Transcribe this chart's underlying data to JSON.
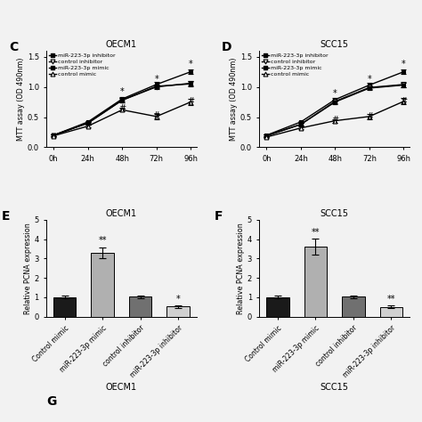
{
  "title_C": "OECM1",
  "title_D": "SCC15",
  "title_E": "OECM1",
  "title_F": "SCC15",
  "timepoints": [
    0,
    24,
    48,
    72,
    96
  ],
  "time_labels": [
    "0h",
    "24h",
    "48h",
    "72h",
    "96h"
  ],
  "C_inhibitor": [
    0.2,
    0.42,
    0.8,
    1.04,
    1.25
  ],
  "C_ctrl_inhibitor": [
    0.2,
    0.4,
    0.78,
    1.0,
    1.06
  ],
  "C_mimic": [
    0.2,
    0.4,
    0.78,
    1.01,
    1.05
  ],
  "C_ctrl_mimic": [
    0.19,
    0.35,
    0.62,
    0.51,
    0.75
  ],
  "C_inhibitor_err": [
    0.02,
    0.02,
    0.03,
    0.04,
    0.04
  ],
  "C_ctrl_inhibitor_err": [
    0.02,
    0.02,
    0.03,
    0.03,
    0.04
  ],
  "C_mimic_err": [
    0.02,
    0.02,
    0.03,
    0.03,
    0.04
  ],
  "C_ctrl_mimic_err": [
    0.02,
    0.02,
    0.03,
    0.04,
    0.05
  ],
  "D_inhibitor": [
    0.2,
    0.42,
    0.79,
    1.03,
    1.25
  ],
  "D_ctrl_inhibitor": [
    0.19,
    0.38,
    0.76,
    0.99,
    1.04
  ],
  "D_mimic": [
    0.19,
    0.38,
    0.75,
    0.98,
    1.03
  ],
  "D_ctrl_mimic": [
    0.17,
    0.32,
    0.44,
    0.51,
    0.76
  ],
  "D_inhibitor_err": [
    0.02,
    0.02,
    0.03,
    0.04,
    0.04
  ],
  "D_ctrl_inhibitor_err": [
    0.02,
    0.02,
    0.03,
    0.03,
    0.04
  ],
  "D_mimic_err": [
    0.02,
    0.02,
    0.03,
    0.03,
    0.04
  ],
  "D_ctrl_mimic_err": [
    0.02,
    0.02,
    0.03,
    0.04,
    0.05
  ],
  "E_categories": [
    "Control mimic",
    "miR-223-3p mimic",
    "control inhibitor",
    "miR-223-3p inhibitor"
  ],
  "E_values": [
    1.0,
    3.3,
    1.02,
    0.52
  ],
  "E_errors": [
    0.06,
    0.28,
    0.07,
    0.06
  ],
  "E_colors": [
    "#1a1a1a",
    "#b0b0b0",
    "#707070",
    "#d0d0d0"
  ],
  "F_categories": [
    "Control mimic",
    "miR-223-3p mimic",
    "control inhibitor",
    "miR-223-3p inhibitor"
  ],
  "F_values": [
    1.0,
    3.6,
    1.02,
    0.5
  ],
  "F_errors": [
    0.06,
    0.42,
    0.07,
    0.06
  ],
  "F_colors": [
    "#1a1a1a",
    "#b0b0b0",
    "#707070",
    "#d0d0d0"
  ],
  "ylabel_mtt": "MTT assay (OD 490nm)",
  "ylabel_pcna": "Relative PCNA expression",
  "ylim_mtt": [
    0.0,
    1.6
  ],
  "ylim_pcna": [
    0,
    5
  ],
  "background_color": "#f2f2f2"
}
